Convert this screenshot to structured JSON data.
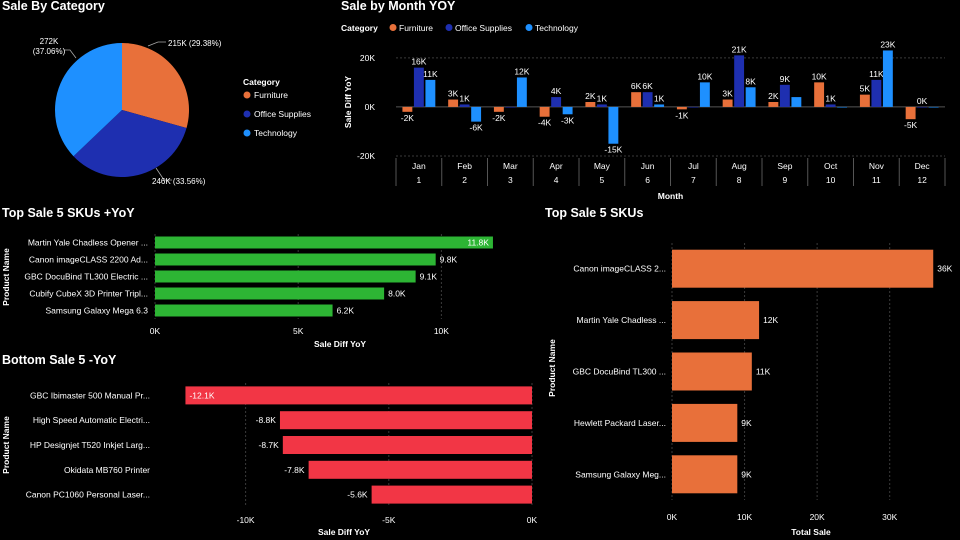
{
  "colors": {
    "furniture": "#E8703A",
    "office": "#1E2FB0",
    "technology": "#1E90FF",
    "green": "#2DB534",
    "red": "#F23645",
    "orange": "#E8703A"
  },
  "chart_data": [
    {
      "id": "pie",
      "type": "pie",
      "title": "Sale By Category",
      "legend_title": "Category",
      "legend_position": "right",
      "categories": [
        "Furniture",
        "Office Supplies",
        "Technology"
      ],
      "values": [
        215,
        246,
        272
      ],
      "labels": [
        "215K (29.38%)",
        "246K (33.56%)",
        "272K\n(37.06%)"
      ]
    },
    {
      "id": "month",
      "type": "bar",
      "title": "Sale by Month YOY",
      "legend_title": "Category",
      "legend_position": "top-left",
      "xlabel": "Month",
      "ylabel": "Sale Diff YoY",
      "ylim": [
        -20,
        24
      ],
      "yticks": [
        {
          "v": 20,
          "label": "20K"
        },
        {
          "v": 0,
          "label": "0K"
        },
        {
          "v": -20,
          "label": "-20K"
        }
      ],
      "categories": [
        "Jan",
        "Feb",
        "Mar",
        "Apr",
        "May",
        "Jun",
        "Jul",
        "Aug",
        "Sep",
        "Oct",
        "Nov",
        "Dec"
      ],
      "sub_categories": [
        "1",
        "2",
        "3",
        "4",
        "5",
        "6",
        "7",
        "8",
        "9",
        "10",
        "11",
        "12"
      ],
      "series": [
        {
          "name": "Furniture",
          "values": [
            -2,
            3,
            -2,
            -4,
            2,
            6,
            -1,
            3,
            2,
            10,
            5,
            -5
          ],
          "labels": [
            "-2K",
            "3K",
            "-2K",
            "-4K",
            "2K",
            "6K",
            "-1K",
            "3K",
            "2K",
            "10K",
            "5K",
            "-5K"
          ]
        },
        {
          "name": "Office Supplies",
          "values": [
            16,
            1,
            0,
            4,
            1,
            6,
            0,
            21,
            9,
            1,
            11,
            0
          ],
          "labels": [
            "16K",
            "1K",
            "",
            "4K",
            "1K",
            "6K",
            "",
            "21K",
            "9K",
            "1K",
            "11K",
            "0K"
          ]
        },
        {
          "name": "Technology",
          "values": [
            11,
            -6,
            12,
            -3,
            -15,
            1,
            10,
            8,
            4,
            0,
            23,
            0
          ],
          "labels": [
            "11K",
            "-6K",
            "12K",
            "-3K",
            "-15K",
            "1K",
            "10K",
            "8K",
            "",
            "",
            "23K",
            ""
          ]
        }
      ]
    },
    {
      "id": "top5yoy",
      "type": "bar",
      "orientation": "horizontal",
      "title": "Top Sale 5 SKUs +YoY",
      "xlabel": "Sale Diff YoY",
      "ylabel": "Product Name",
      "xlim": [
        0,
        12.5
      ],
      "xticks": [
        {
          "v": 0,
          "label": "0K"
        },
        {
          "v": 5,
          "label": "5K"
        },
        {
          "v": 10,
          "label": "10K"
        }
      ],
      "categories": [
        "Martin Yale Chadless Opener ...",
        "Canon imageCLASS 2200 Ad...",
        "GBC DocuBind TL300 Electric ...",
        "Cubify CubeX 3D Printer Tripl...",
        "Samsung Galaxy Mega 6.3"
      ],
      "values": [
        11.8,
        9.8,
        9.1,
        8.0,
        6.2
      ],
      "labels": [
        "11.8K",
        "9.8K",
        "9.1K",
        "8.0K",
        "6.2K"
      ]
    },
    {
      "id": "bottom5",
      "type": "bar",
      "orientation": "horizontal",
      "title": "Bottom Sale 5 -YoY",
      "xlabel": "Sale Diff YoY",
      "ylabel": "Product Name",
      "xlim": [
        -12.5,
        0
      ],
      "xticks": [
        {
          "v": -10,
          "label": "-10K"
        },
        {
          "v": -5,
          "label": "-5K"
        },
        {
          "v": 0,
          "label": "0K"
        }
      ],
      "categories": [
        "GBC Ibimaster 500 Manual Pr...",
        "High Speed Automatic Electri...",
        "HP Designjet T520 Inkjet Larg...",
        "Okidata MB760 Printer",
        "Canon PC1060 Personal Laser..."
      ],
      "values": [
        -12.1,
        -8.8,
        -8.7,
        -7.8,
        -5.6
      ],
      "labels": [
        "-12.1K",
        "-8.8K",
        "-8.7K",
        "-7.8K",
        "-5.6K"
      ]
    },
    {
      "id": "top5",
      "type": "bar",
      "orientation": "horizontal",
      "title": "Top Sale 5 SKUs",
      "xlabel": "Total Sale",
      "ylabel": "Product Name",
      "xlim": [
        0,
        39
      ],
      "xticks": [
        {
          "v": 0,
          "label": "0K"
        },
        {
          "v": 10,
          "label": "10K"
        },
        {
          "v": 20,
          "label": "20K"
        },
        {
          "v": 30,
          "label": "30K"
        }
      ],
      "categories": [
        "Canon imageCLASS 2...",
        "Martin Yale Chadless ...",
        "GBC DocuBind TL300 ...",
        "Hewlett Packard Laser...",
        "Samsung Galaxy Meg..."
      ],
      "values": [
        36,
        12,
        11,
        9,
        9
      ],
      "labels": [
        "36K",
        "12K",
        "11K",
        "9K",
        "9K"
      ]
    }
  ]
}
